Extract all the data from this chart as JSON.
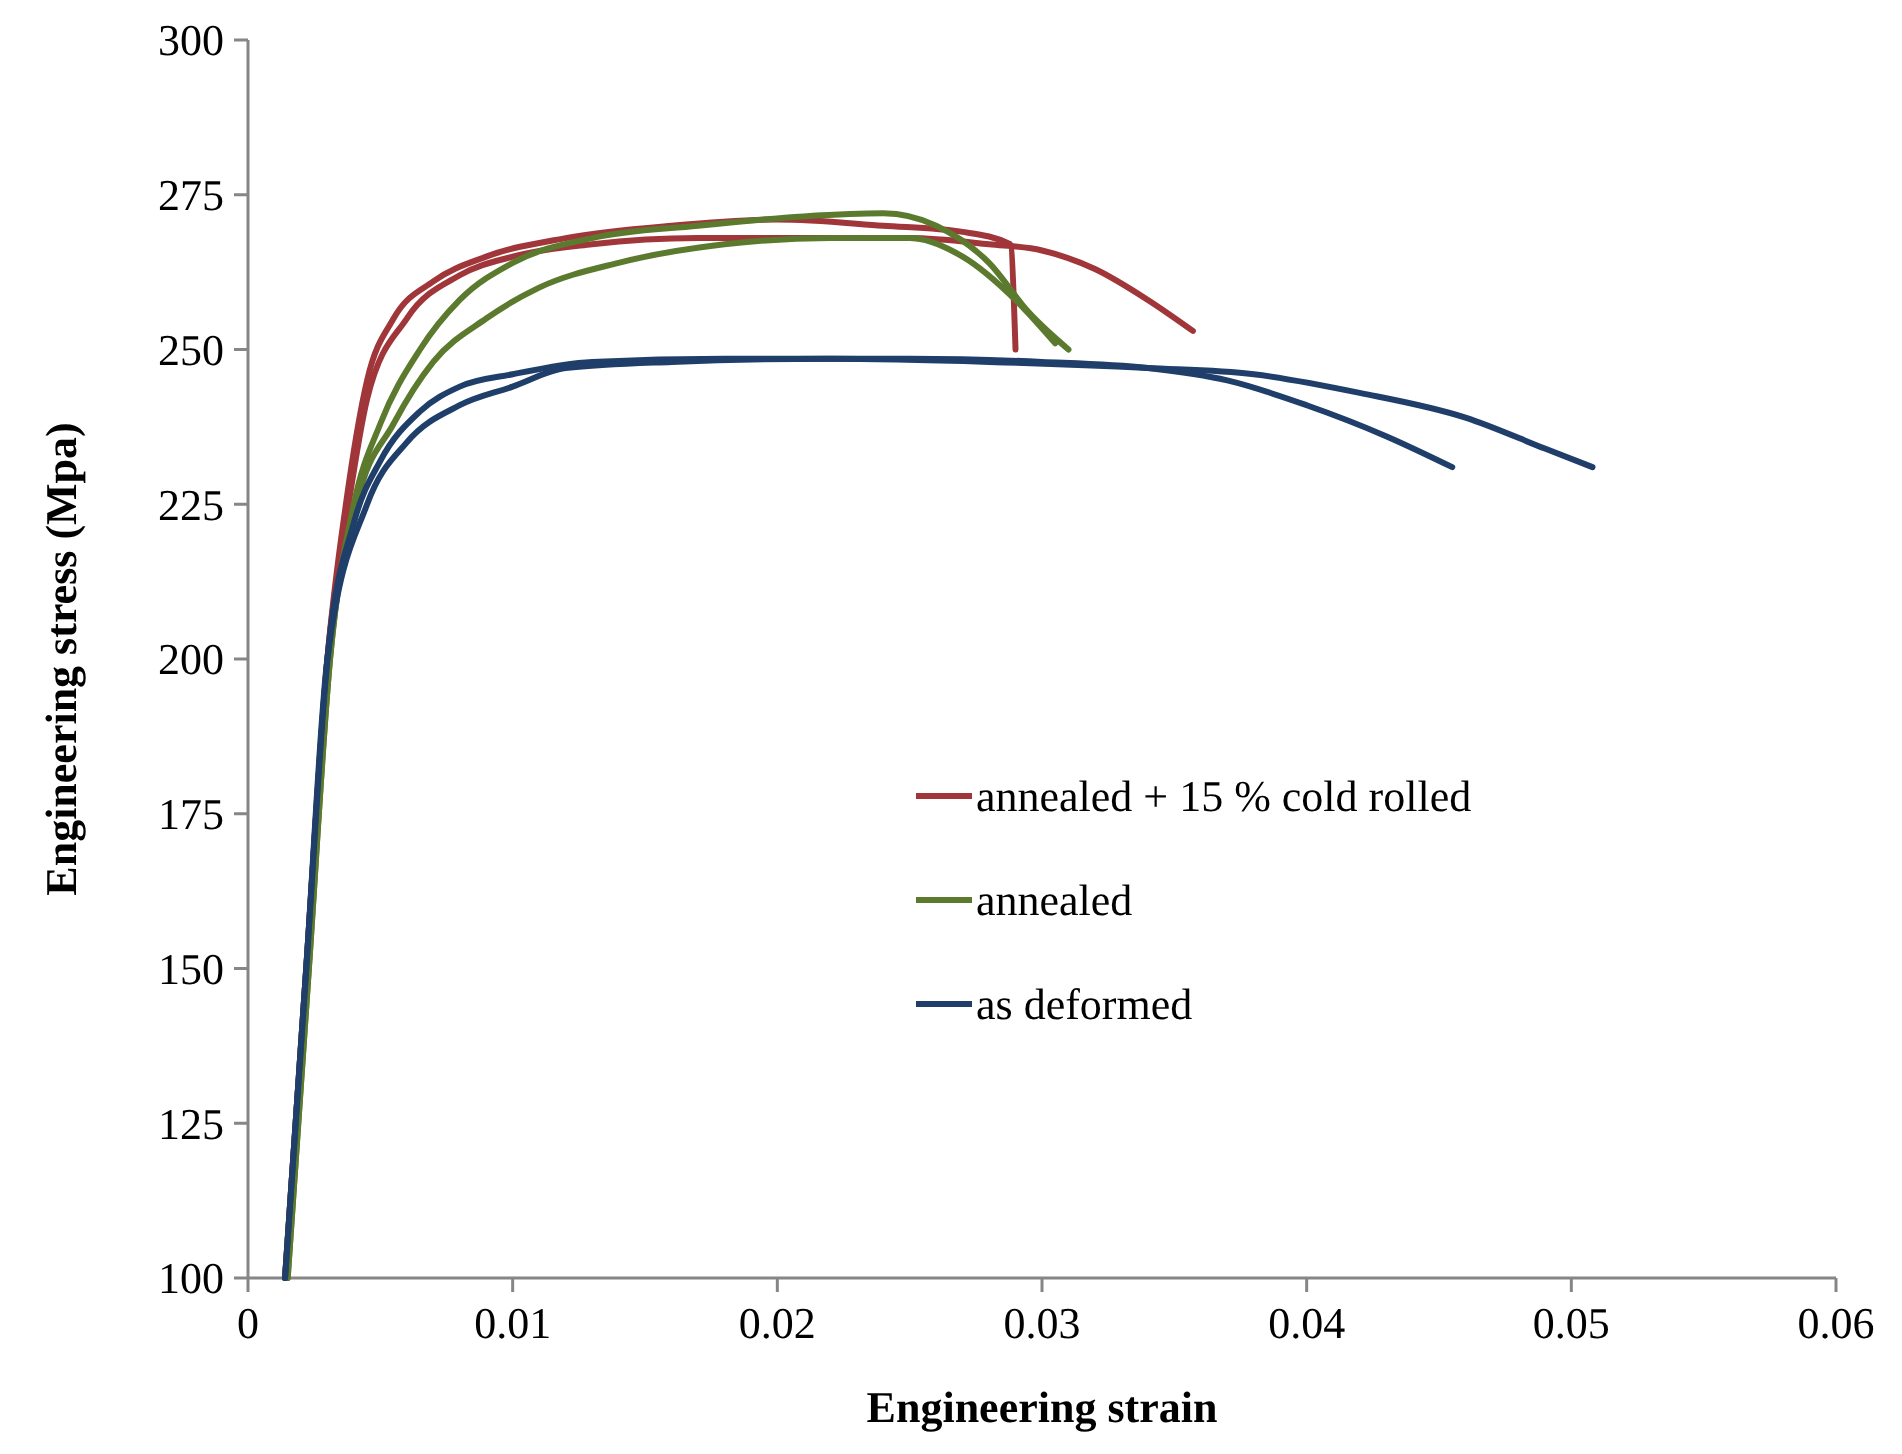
{
  "chart_data": {
    "type": "line",
    "xlabel": "Engineering strain",
    "ylabel": "Engineering stress (Mpa)",
    "xlim": [
      0,
      0.06
    ],
    "ylim": [
      100,
      300
    ],
    "xticks": [
      {
        "value": 0,
        "label": "0"
      },
      0.01,
      0.02,
      0.03,
      0.04,
      0.05,
      0.06
    ],
    "yticks": [
      100,
      125,
      150,
      175,
      200,
      225,
      250,
      275,
      300
    ],
    "grid": false,
    "legend": "right",
    "marker": "none",
    "line_style": "solid",
    "series": [
      {
        "name": "annealed + 15 % cold rolled",
        "color": "#a0363a",
        "x": [
          0.0014,
          0.0022,
          0.003,
          0.0037,
          0.0045,
          0.0055,
          0.007,
          0.009,
          0.012,
          0.016,
          0.02,
          0.024,
          0.027,
          0.0288,
          0.029
        ],
        "values": [
          100,
          150,
          200,
          225,
          245,
          255,
          261,
          265,
          268,
          270,
          271,
          270,
          269,
          267,
          250
        ]
      },
      {
        "color": "#a0363a",
        "x": [
          0.0014,
          0.0022,
          0.003,
          0.0038,
          0.0045,
          0.006,
          0.008,
          0.01,
          0.013,
          0.017,
          0.021,
          0.025,
          0.028,
          0.03,
          0.032,
          0.034,
          0.0357
        ],
        "values": [
          100,
          150,
          200,
          225,
          242,
          255,
          262,
          265,
          267,
          268,
          268,
          268,
          267,
          266,
          263,
          258,
          253
        ]
      },
      {
        "name": "annealed",
        "color": "#5b7a2e",
        "x": [
          0.0015,
          0.0023,
          0.0031,
          0.004,
          0.005,
          0.0065,
          0.008,
          0.01,
          0.013,
          0.017,
          0.021,
          0.024,
          0.026,
          0.028,
          0.0295,
          0.031
        ],
        "values": [
          100,
          150,
          200,
          225,
          238,
          250,
          258,
          264,
          268,
          270,
          271.5,
          272,
          270,
          264,
          256,
          250
        ]
      },
      {
        "color": "#5b7a2e",
        "x": [
          0.0015,
          0.0023,
          0.0031,
          0.0041,
          0.0055,
          0.007,
          0.009,
          0.011,
          0.014,
          0.018,
          0.022,
          0.025,
          0.027,
          0.029,
          0.0305
        ],
        "values": [
          100,
          150,
          200,
          225,
          238,
          248,
          255,
          260,
          264,
          267,
          268,
          268,
          265,
          258,
          251
        ]
      },
      {
        "name": "as deformed",
        "color": "#1f3f6a",
        "x": [
          0.0014,
          0.0022,
          0.003,
          0.004,
          0.005,
          0.0065,
          0.008,
          0.01,
          0.013,
          0.018,
          0.025,
          0.03,
          0.034,
          0.037,
          0.04,
          0.043,
          0.0455
        ],
        "values": [
          100,
          150,
          200,
          222,
          232,
          240,
          244,
          246,
          248,
          248.5,
          248.5,
          248,
          247,
          245,
          241,
          236,
          231
        ]
      },
      {
        "color": "#1f3f6a",
        "x": [
          0.0014,
          0.0022,
          0.003,
          0.0045,
          0.006,
          0.008,
          0.01,
          0.012,
          0.016,
          0.022,
          0.028,
          0.034,
          0.038,
          0.042,
          0.046,
          0.049,
          0.0508
        ],
        "values": [
          100,
          150,
          200,
          225,
          235,
          241,
          244,
          247,
          248,
          248.5,
          248,
          247,
          246,
          243,
          239,
          234,
          231
        ]
      }
    ]
  }
}
